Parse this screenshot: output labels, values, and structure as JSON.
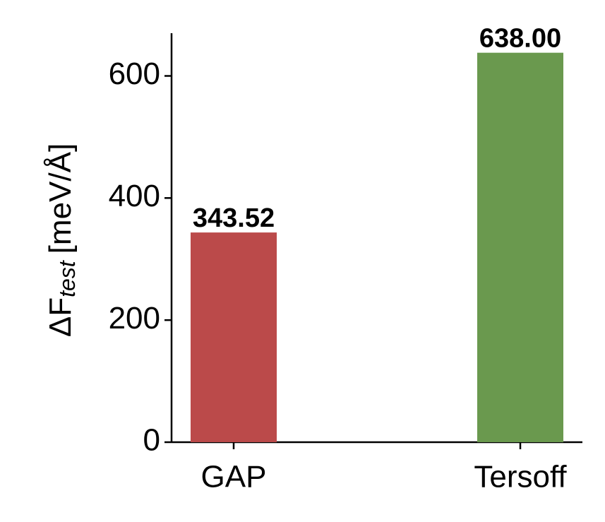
{
  "chart_data": {
    "type": "bar",
    "ylabel": {
      "main": "ΔF",
      "sub": "test",
      "unit": "[meV/Å]"
    },
    "categories": [
      "GAP",
      "Tersoff"
    ],
    "values": [
      343.52,
      638.0
    ],
    "value_labels": [
      "343.52",
      "638.00"
    ],
    "colors": [
      "#bb4a4a",
      "#6a994e"
    ],
    "ylim": [
      0,
      670
    ],
    "yticks": [
      0,
      200,
      400,
      600
    ],
    "grid": false
  }
}
